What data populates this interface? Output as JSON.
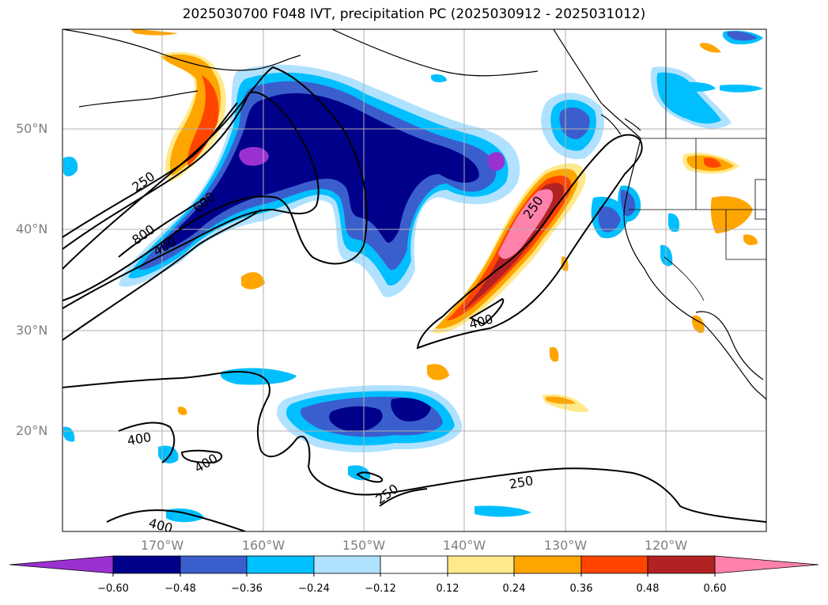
{
  "title": "2025030700 F048 IVT, precipitation PC (2025030912 - 2025031012)",
  "lat_labels": [
    "50°N",
    "40°N",
    "30°N",
    "20°N"
  ],
  "lon_labels": [
    "170°W",
    "160°W",
    "150°W",
    "140°W",
    "130°W",
    "120°W"
  ],
  "contour_labels": [
    "250",
    "250",
    "250",
    "400",
    "400",
    "400",
    "400",
    "400",
    "600",
    "800"
  ],
  "colorbar": {
    "tick_labels": [
      "−0.60",
      "−0.48",
      "−0.36",
      "−0.24",
      "−0.12",
      "0.12",
      "0.24",
      "0.36",
      "0.48",
      "0.60"
    ],
    "colors": [
      "#9b30d0",
      "#00008b",
      "#3a5fcd",
      "#00bfff",
      "#b0e2ff",
      "#ffffff",
      "#ffe98a",
      "#ffa500",
      "#ff4500",
      "#b22222",
      "#ff82ab"
    ]
  },
  "colors": {
    "coast": "#000000",
    "grid": "#b0b0b0",
    "contour": "#000000"
  }
}
